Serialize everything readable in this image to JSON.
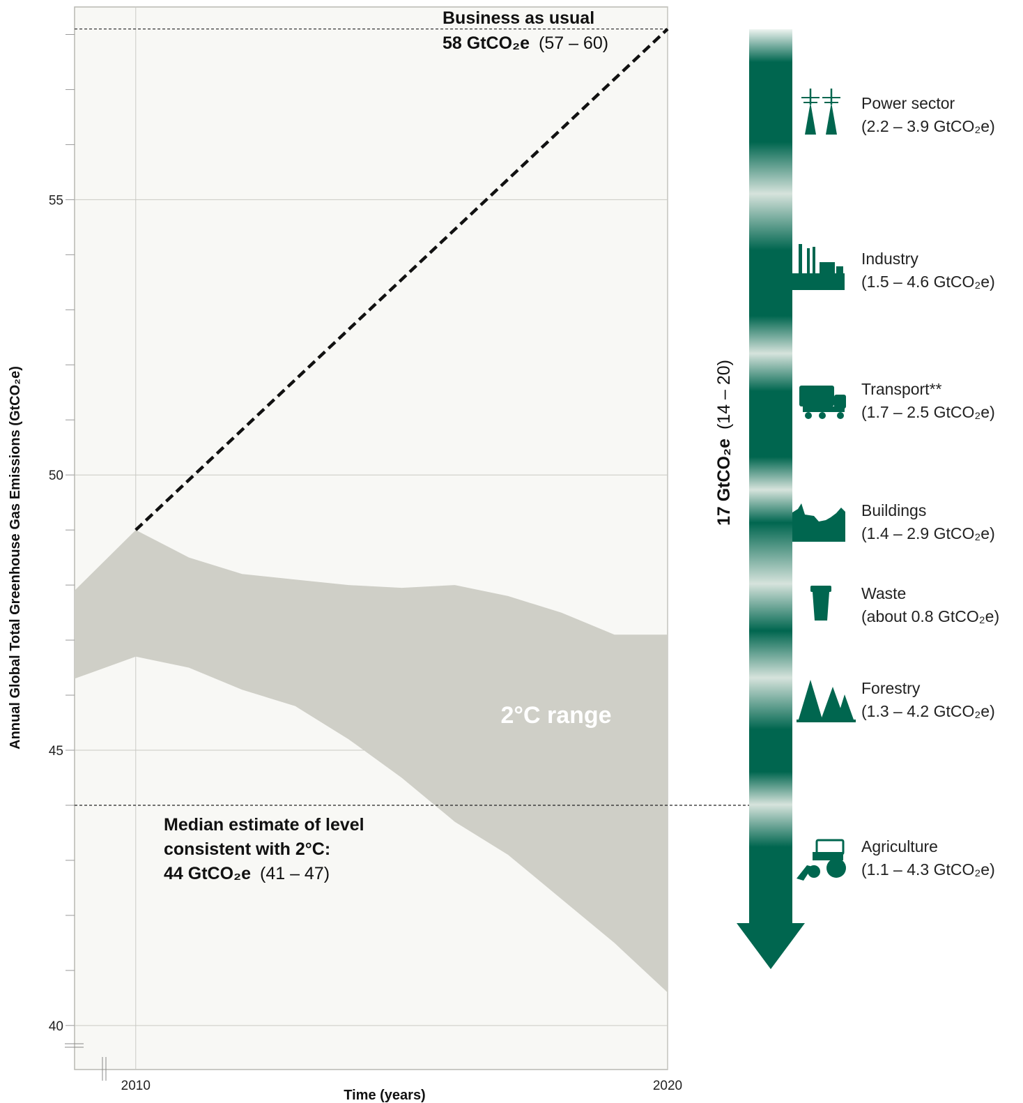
{
  "chart_data": {
    "type": "area",
    "xlabel": "Time (years)",
    "ylabel": "Annual Global Total Greenhouse Gas Emissions (GtCO₂e)",
    "xlim": [
      2008.85,
      2020
    ],
    "ylim": [
      39.2,
      58.5
    ],
    "x_ticks": [
      {
        "value": 2010,
        "label": "2010"
      },
      {
        "value": 2020,
        "label": "2020"
      }
    ],
    "y_ticks": [
      {
        "value": 40,
        "label": "40"
      },
      {
        "value": 45,
        "label": "45"
      },
      {
        "value": 50,
        "label": "50"
      },
      {
        "value": 55,
        "label": "55"
      }
    ],
    "y_minor_step": 1,
    "grid": true,
    "range_band": {
      "label": "2°C range",
      "color": "#cfcfc7",
      "x": [
        2008.85,
        2010,
        2011,
        2012,
        2013,
        2014,
        2015,
        2016,
        2017,
        2018,
        2019,
        2020
      ],
      "upper": [
        47.9,
        49.0,
        48.5,
        48.2,
        48.1,
        48.0,
        47.95,
        48.0,
        47.8,
        47.5,
        47.1,
        47.1
      ],
      "lower": [
        46.3,
        46.7,
        46.5,
        46.1,
        45.8,
        45.2,
        44.5,
        43.7,
        43.1,
        42.3,
        41.5,
        40.6
      ]
    },
    "business_as_usual": {
      "title": "Business as usual",
      "value_label": "58 GtCO₂e",
      "range_label": "(57 – 60)",
      "x": [
        2010,
        2020
      ],
      "y": [
        49.0,
        58.1
      ]
    },
    "median_2c": {
      "line1": "Median estimate of level",
      "line2": "consistent with 2°C:",
      "value_label": "44 GtCO₂e",
      "range_label": "(41 – 47)",
      "y": 44.0
    },
    "gap_arrow": {
      "value_label": "17 GtCO₂e",
      "range_label": "(14 – 20)",
      "color": "#00664f",
      "sectors": [
        {
          "name": "Power sector",
          "range": "(2.2 – 3.9 GtCO₂e)",
          "icon": "power-pylon-icon"
        },
        {
          "name": "Industry",
          "range": "(1.5 – 4.6 GtCO₂e)",
          "icon": "factory-icon"
        },
        {
          "name": "Transport**",
          "range": "(1.7 – 2.5 GtCO₂e)",
          "icon": "truck-icon"
        },
        {
          "name": "Buildings",
          "range": "(1.4 – 2.9 GtCO₂e)",
          "icon": "buildings-icon"
        },
        {
          "name": "Waste",
          "range": "(about 0.8 GtCO₂e)",
          "icon": "waste-bin-icon"
        },
        {
          "name": "Forestry",
          "range": "(1.3 – 4.2 GtCO₂e)",
          "icon": "trees-icon"
        },
        {
          "name": "Agriculture",
          "range": "(1.1 – 4.3 GtCO₂e)",
          "icon": "tractor-icon"
        }
      ]
    }
  }
}
